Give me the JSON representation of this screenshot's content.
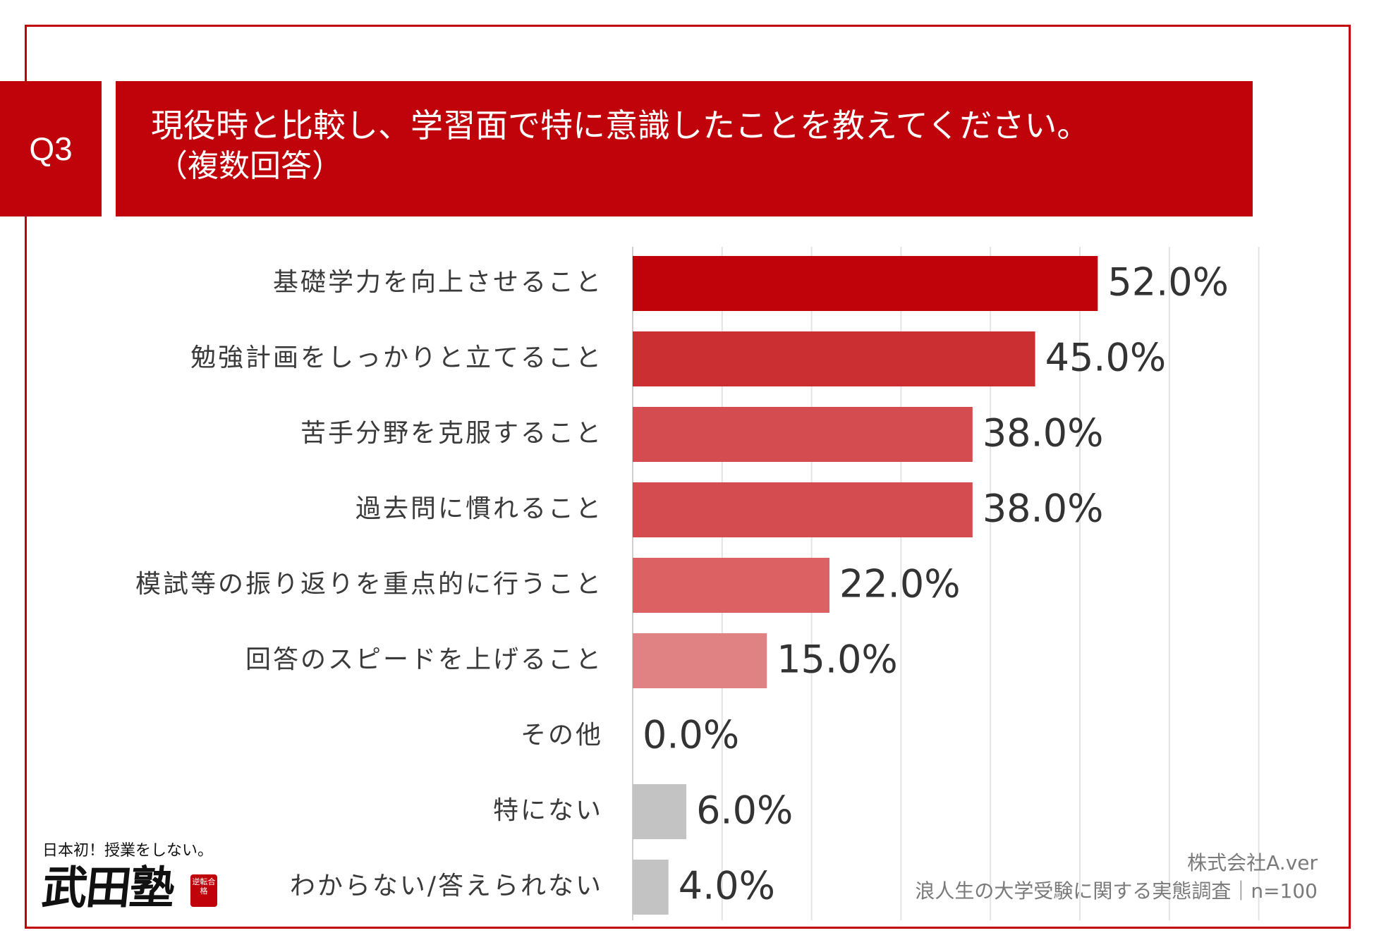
{
  "header": {
    "badge": "Q3",
    "question": "現役時と比較し、学習面で特に意識したことを教えてください。",
    "note": "（複数回答）"
  },
  "colors": {
    "accent": "#c0030b",
    "gray_bar": "#c3c3c3",
    "grid": "#e3e3e3",
    "label": "#3a3a3a"
  },
  "chart_data": {
    "type": "bar",
    "orientation": "horizontal",
    "title": "現役時と比較し、学習面で特に意識したことを教えてください。（複数回答）",
    "categories": [
      "基礎学力を向上させること",
      "勉強計画をしっかりと立てること",
      "苦手分野を克服すること",
      "過去問に慣れること",
      "模試等の振り返りを重点的に行うこと",
      "回答のスピードを上げること",
      "その他",
      "特にない",
      "わからない/答えられない"
    ],
    "values": [
      52.0,
      45.0,
      38.0,
      38.0,
      22.0,
      15.0,
      0.0,
      6.0,
      4.0
    ],
    "value_labels": [
      "52.0%",
      "45.0%",
      "38.0%",
      "38.0%",
      "22.0%",
      "15.0%",
      "0.0%",
      "6.0%",
      "4.0%"
    ],
    "bar_colors": [
      "#c0030b",
      "#cc2f32",
      "#d44c4f",
      "#d44c4f",
      "#dc6163",
      "#e08283",
      "#e08283",
      "#c3c3c3",
      "#c3c3c3"
    ],
    "xlim": [
      0,
      70
    ],
    "grid_step": 10,
    "grid": true,
    "legend": "none"
  },
  "logo": {
    "tagline": "日本初！授業をしない。",
    "name": "武田塾",
    "seal": "逆転合格"
  },
  "source": {
    "company": "株式会社A.ver",
    "survey": "浪人生の大学受験に関する実態調査｜n=100"
  }
}
